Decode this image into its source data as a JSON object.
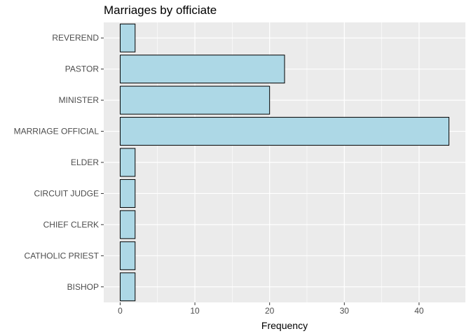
{
  "chart_data": {
    "type": "bar",
    "orientation": "horizontal",
    "title": "Marriages by officiate",
    "xlabel": "Frequency",
    "ylabel": "",
    "categories": [
      "BISHOP",
      "CATHOLIC PRIEST",
      "CHIEF CLERK",
      "CIRCUIT JUDGE",
      "ELDER",
      "MARRIAGE OFFICIAL",
      "MINISTER",
      "PASTOR",
      "REVEREND"
    ],
    "values": [
      2,
      2,
      2,
      2,
      2,
      44,
      20,
      22,
      2
    ],
    "xlim": [
      -2.2,
      46.2
    ],
    "xticks": [
      0,
      10,
      20,
      30,
      40
    ],
    "grid": true,
    "legend": "none",
    "colors": {
      "bar_fill": "#add8e6",
      "bar_stroke": "#000000",
      "panel_background": "#ebebeb",
      "gridline": "#ffffff"
    }
  }
}
